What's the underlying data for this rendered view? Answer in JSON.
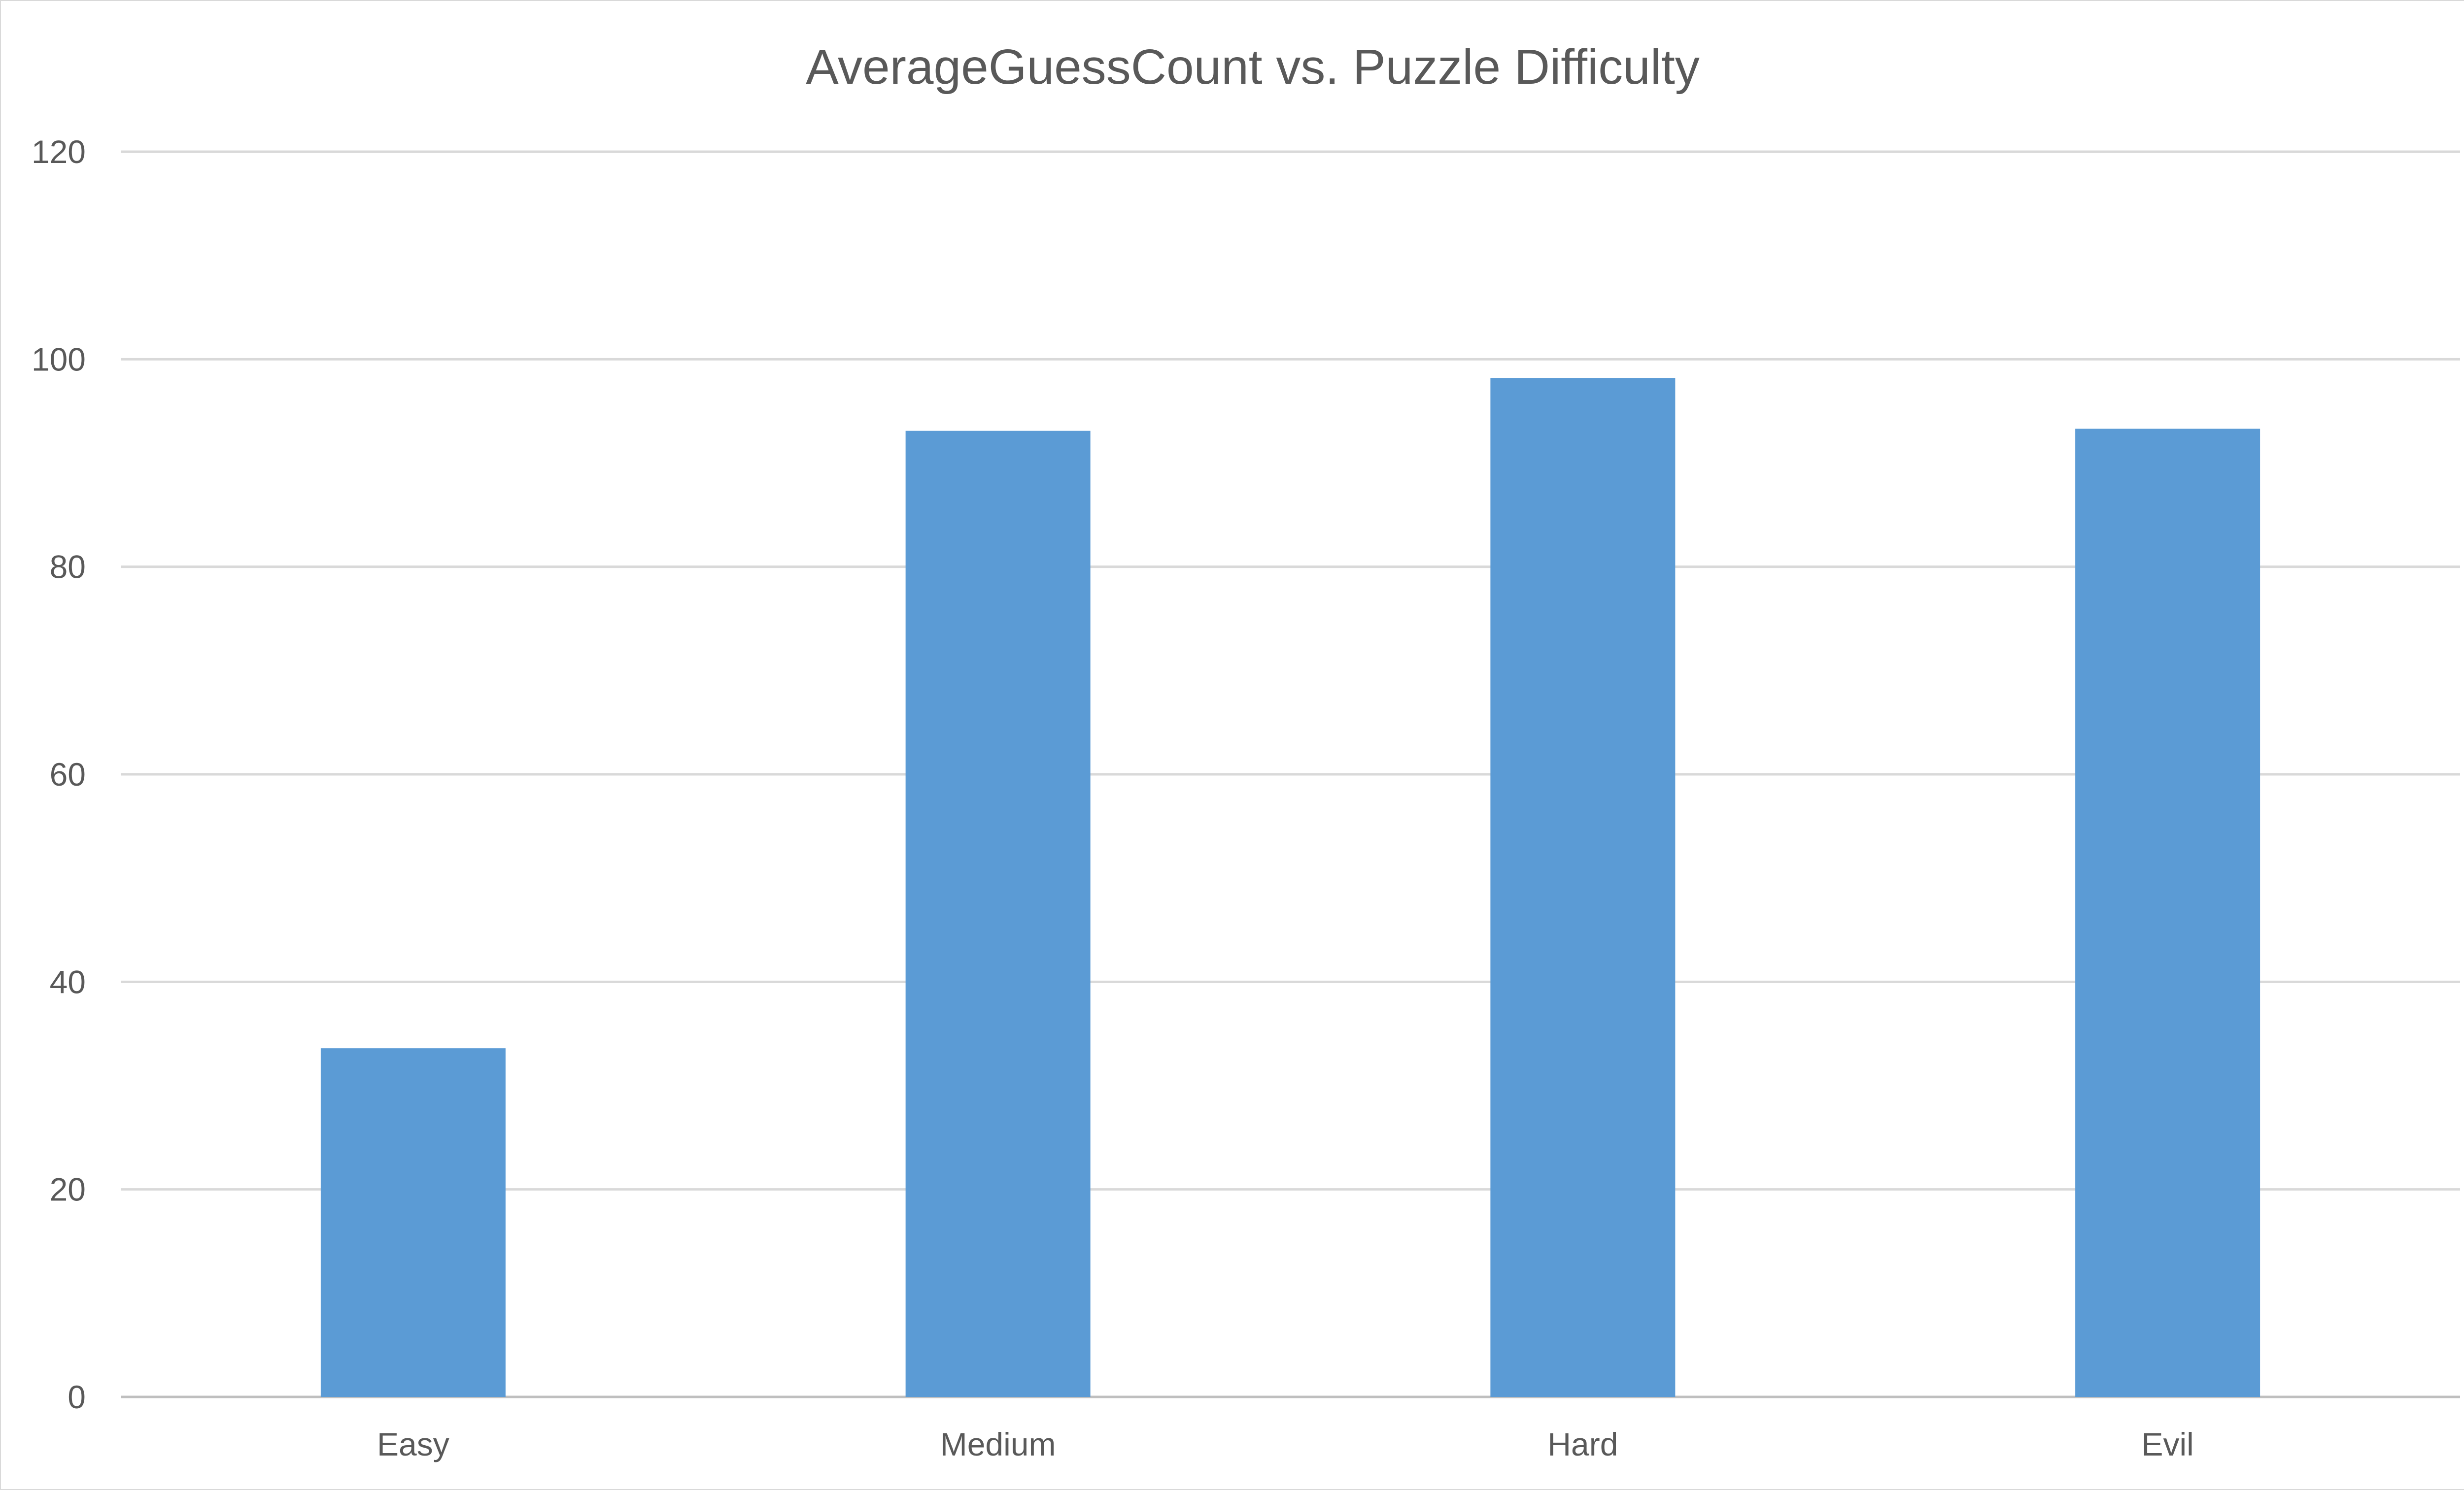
{
  "chart_data": {
    "type": "bar",
    "title": "AverageGuessCount vs. Puzzle Difficulty",
    "xlabel": "",
    "ylabel": "",
    "categories": [
      "Easy",
      "Medium",
      "Hard",
      "Evil"
    ],
    "values": [
      33.6,
      93.1,
      98.2,
      93.3
    ],
    "ylim": [
      0,
      120
    ],
    "yticks": [
      0,
      20,
      40,
      60,
      80,
      100,
      120
    ],
    "grid": true,
    "legend": "none",
    "bar_color": "#5b9bd5"
  }
}
